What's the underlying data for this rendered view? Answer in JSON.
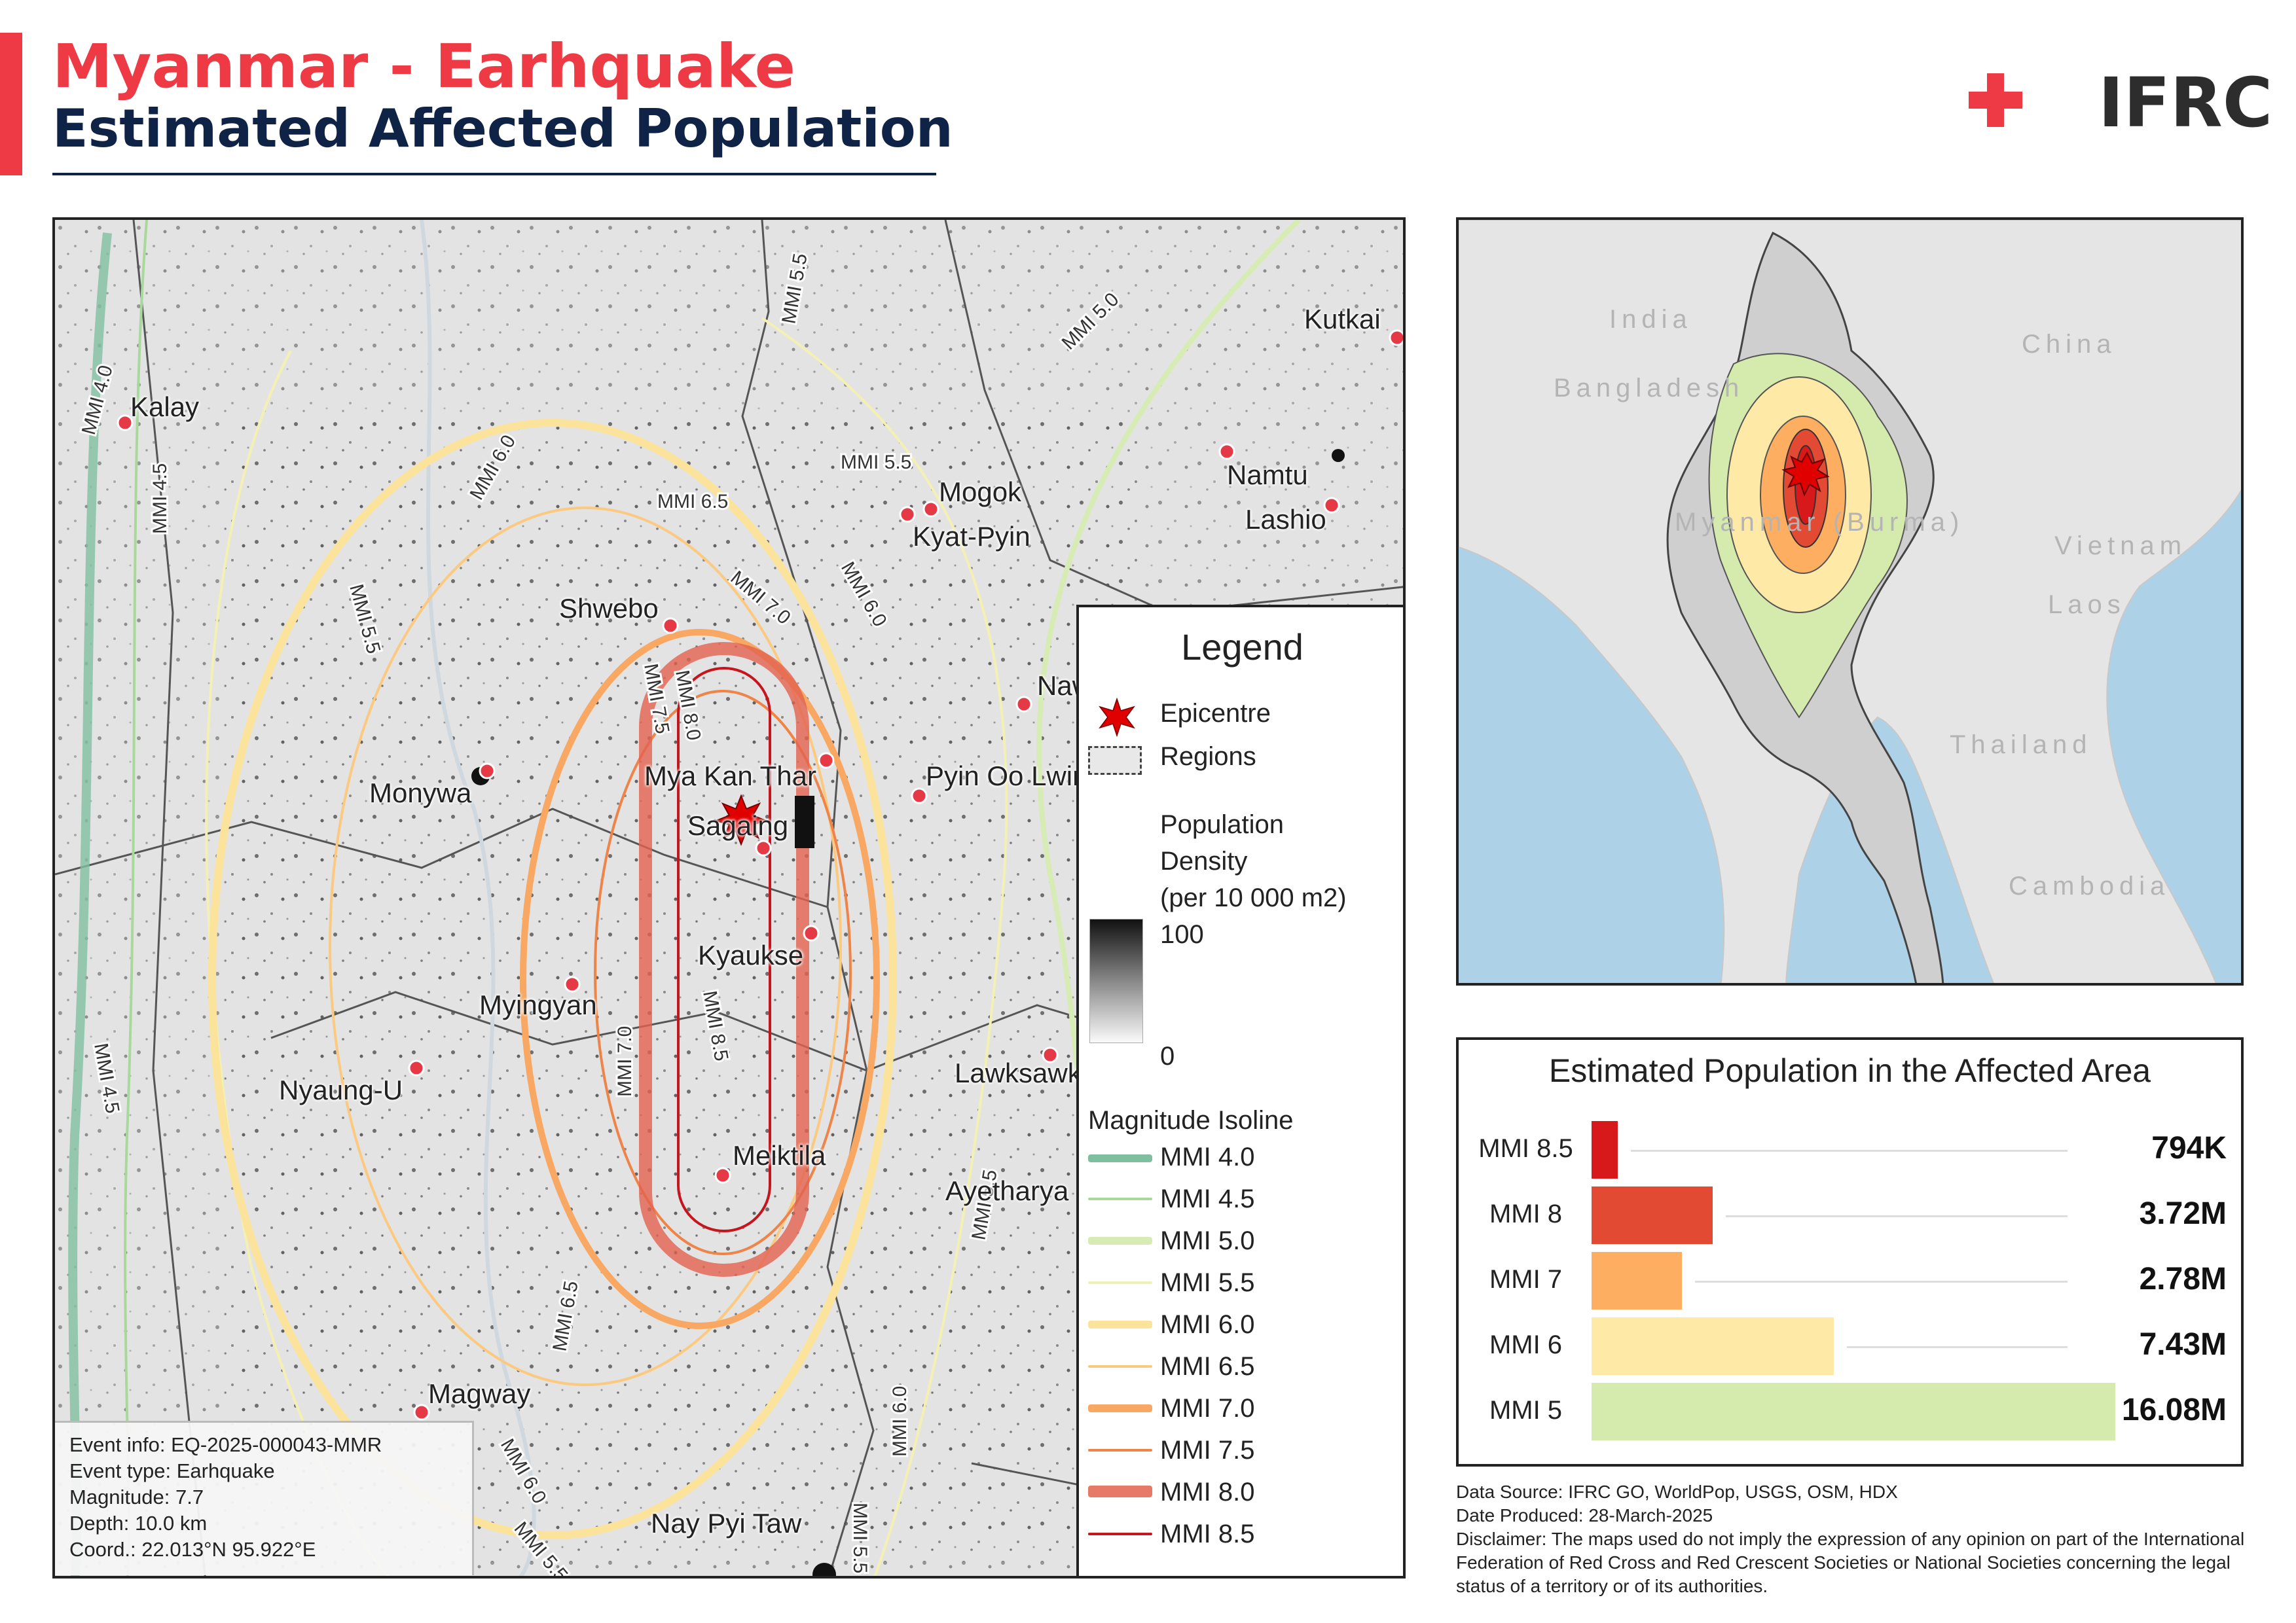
{
  "header": {
    "title_line1": "Myanmar - Earhquake",
    "title_line2": "Estimated Affected Population",
    "logo_text": "IFRC",
    "accent_color": "#ee3a45",
    "title_color": "#0f2347"
  },
  "main_map": {
    "cities": [
      "Kalay",
      "Kutkai",
      "Mogok",
      "Kyat-Pyin",
      "Namtu",
      "Lashio",
      "Shwebo",
      "Monywa",
      "Mya Kan Thar",
      "Sagaing",
      "Pyin Oo Lwin",
      "Kyaukse",
      "Myingyan",
      "Nyaung-U",
      "Lawksawk",
      "Meiktila",
      "Ayetharya",
      "Magway",
      "Nay Pyi Taw",
      "Naw"
    ],
    "isoline_labels": [
      "MMI 4.0",
      "MMI 4.5",
      "MMI 5.0",
      "MMI 5.5",
      "MMI 6.0",
      "MMI 6.5",
      "MMI 7.0",
      "MMI 7.5",
      "MMI 8.0",
      "MMI 8.5"
    ],
    "event_info": {
      "id": "Event info: EQ-2025-000043-MMR",
      "type": "Event type: Earhquake",
      "magnitude": "Magnitude: 7.7",
      "depth": "Depth: 10.0 km",
      "coord": "Coord.: 22.013°N 95.922°E"
    }
  },
  "legend": {
    "title": "Legend",
    "epicentre": "Epicentre",
    "regions": "Regions",
    "density_label": [
      "Population",
      "Density",
      "(per 10 000 m2)"
    ],
    "density_max": "100",
    "density_min": "0",
    "isoline_title": "Magnitude Isoline",
    "isolines": [
      {
        "label": "MMI 4.0",
        "color": "#7fbf9f"
      },
      {
        "label": "MMI 4.5",
        "color": "#a8d99a"
      },
      {
        "label": "MMI 5.0",
        "color": "#d6ecb4"
      },
      {
        "label": "MMI 5.5",
        "color": "#f3f0b4"
      },
      {
        "label": "MMI 6.0",
        "color": "#fbe39c"
      },
      {
        "label": "MMI 6.5",
        "color": "#fbc97f"
      },
      {
        "label": "MMI 7.0",
        "color": "#f8a862"
      },
      {
        "label": "MMI 7.5",
        "color": "#ef8448"
      },
      {
        "label": "MMI 8.0",
        "color": "#e3614f"
      },
      {
        "label": "MMI 8.5",
        "color": "#c5161d"
      }
    ]
  },
  "inset_map": {
    "countries": [
      "India",
      "Bangladesh",
      "China",
      "Myanmar (Burma)",
      "Vietnam",
      "Laos",
      "Thailand",
      "Cambodia"
    ]
  },
  "population_chart": {
    "title": "Estimated Population in the Affected Area",
    "bars": [
      {
        "label": "MMI 8.5",
        "value": 0.794,
        "display": "794K",
        "color": "#d7191c"
      },
      {
        "label": "MMI 8",
        "value": 3.72,
        "display": "3.72M",
        "color": "#e34a33"
      },
      {
        "label": "MMI 7",
        "value": 2.78,
        "display": "2.78M",
        "color": "#fdae61"
      },
      {
        "label": "MMI 6",
        "value": 7.43,
        "display": "7.43M",
        "color": "#fee9a6"
      },
      {
        "label": "MMI 5",
        "value": 16.08,
        "display": "16.08M",
        "color": "#d4ebad"
      }
    ]
  },
  "chart_data": {
    "type": "bar",
    "title": "Estimated Population in the Affected Area",
    "categories": [
      "MMI 8.5",
      "MMI 8",
      "MMI 7",
      "MMI 6",
      "MMI 5"
    ],
    "values": [
      794000,
      3720000,
      2780000,
      7430000,
      16080000
    ]
  },
  "notes": {
    "source": "Data Source: IFRC GO, WorldPop, USGS, OSM, HDX",
    "date": "Date Produced: 28-March-2025",
    "disclaimer": "Disclaimer: The maps used do not imply the expression of any opinion on part of the International Federation of Red Cross and Red Crescent Societies or National Societies concerning the legal status of a territory or of its authorities."
  }
}
